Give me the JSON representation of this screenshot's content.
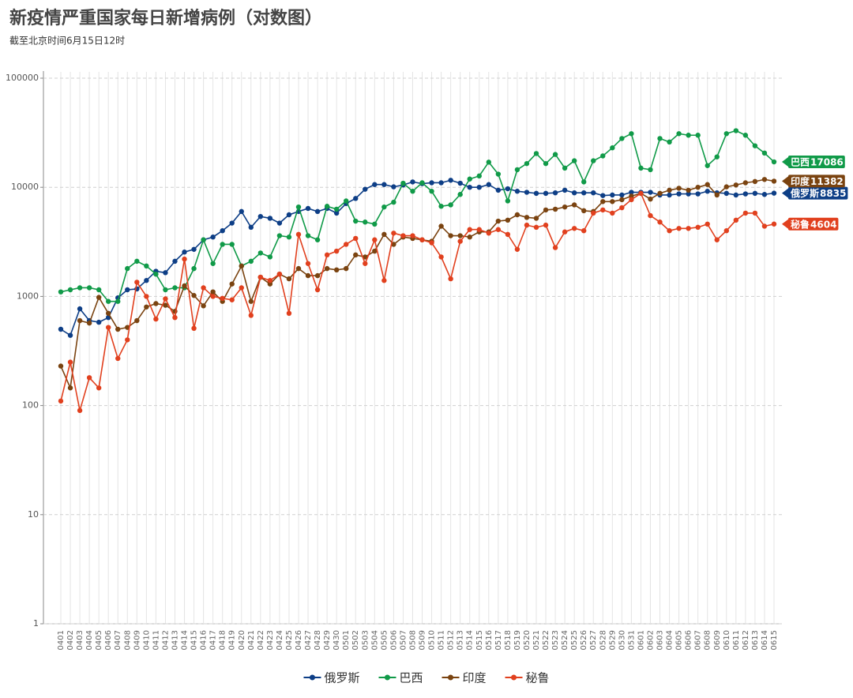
{
  "chart_data": {
    "type": "line",
    "title": "新疫情严重国家每日新增病例（对数图）",
    "subtitle": "截至北京时间6月15日12时",
    "categories": [
      "0401",
      "0402",
      "0403",
      "0404",
      "0405",
      "0406",
      "0407",
      "0408",
      "0409",
      "0410",
      "0411",
      "0412",
      "0413",
      "0414",
      "0415",
      "0416",
      "0417",
      "0418",
      "0419",
      "0420",
      "0421",
      "0422",
      "0423",
      "0424",
      "0425",
      "0426",
      "0427",
      "0428",
      "0429",
      "0430",
      "0501",
      "0502",
      "0503",
      "0504",
      "0505",
      "0506",
      "0507",
      "0508",
      "0509",
      "0510",
      "0511",
      "0512",
      "0513",
      "0514",
      "0515",
      "0516",
      "0517",
      "0518",
      "0519",
      "0520",
      "0521",
      "0522",
      "0523",
      "0524",
      "0525",
      "0526",
      "0527",
      "0528",
      "0529",
      "0530",
      "0531",
      "0601",
      "0602",
      "0603",
      "0604",
      "0605",
      "0606",
      "0607",
      "0608",
      "0609",
      "0610",
      "0611",
      "0612",
      "0613",
      "0614",
      "0615"
    ],
    "log_scale": true,
    "ylim": [
      1,
      100000
    ],
    "yticks": [
      1,
      10,
      100,
      1000,
      10000,
      100000
    ],
    "grid": true,
    "legend": "bottom",
    "series": [
      {
        "name": "俄罗斯",
        "color": "#0d3e86",
        "values": [
          500,
          440,
          770,
          600,
          580,
          640,
          970,
          1150,
          1170,
          1400,
          1700,
          1650,
          2100,
          2550,
          2700,
          3300,
          3500,
          4000,
          4700,
          6000,
          4300,
          5400,
          5200,
          4700,
          5600,
          6000,
          6400,
          6000,
          6400,
          5800,
          7100,
          7900,
          9600,
          10600,
          10600,
          10100,
          10500,
          11200,
          10800,
          11000,
          11000,
          11600,
          10900,
          10000,
          10000,
          10600,
          9400,
          9700,
          9200,
          9000,
          8800,
          8800,
          8900,
          9400,
          8900,
          8900,
          8900,
          8400,
          8500,
          8500,
          9000,
          9000,
          9000,
          8500,
          8500,
          8700,
          8700,
          8700,
          9200,
          8900,
          8800,
          8500,
          8700,
          8800,
          8600,
          8835
        ]
      },
      {
        "name": "巴西",
        "color": "#109a48",
        "values": [
          1100,
          1150,
          1200,
          1200,
          1150,
          900,
          900,
          1800,
          2100,
          1900,
          1600,
          1150,
          1200,
          1200,
          1800,
          3300,
          2000,
          3000,
          3000,
          1900,
          2100,
          2500,
          2300,
          3600,
          3500,
          6600,
          3600,
          3300,
          6700,
          6300,
          7500,
          4900,
          4800,
          4600,
          6600,
          7300,
          10900,
          9200,
          11000,
          9200,
          6700,
          6900,
          8600,
          11900,
          12700,
          17000,
          13200,
          7500,
          14500,
          16500,
          20400,
          16500,
          20000,
          15000,
          17500,
          11200,
          17500,
          19400,
          23000,
          28000,
          31000,
          15000,
          14500,
          28000,
          26000,
          31000,
          30000,
          30000,
          15800,
          19000,
          31000,
          33000,
          30000,
          24000,
          20600,
          17086
        ]
      },
      {
        "name": "印度",
        "color": "#7a4310",
        "values": [
          230,
          145,
          600,
          570,
          980,
          700,
          500,
          520,
          600,
          800,
          860,
          830,
          730,
          1250,
          1020,
          820,
          1100,
          900,
          1300,
          1900,
          900,
          1500,
          1300,
          1600,
          1450,
          1800,
          1550,
          1550,
          1800,
          1750,
          1800,
          2400,
          2300,
          2600,
          3700,
          3000,
          3500,
          3400,
          3300,
          3200,
          4400,
          3600,
          3600,
          3500,
          3900,
          3900,
          4900,
          5000,
          5600,
          5300,
          5200,
          6200,
          6300,
          6600,
          6900,
          6100,
          6000,
          7400,
          7400,
          7700,
          8300,
          8800,
          7800,
          8800,
          9400,
          9800,
          9400,
          10000,
          10600,
          8500,
          10100,
          10500,
          11000,
          11300,
          11800,
          11382
        ]
      },
      {
        "name": "秘鲁",
        "color": "#e1401e",
        "values": [
          110,
          250,
          90,
          180,
          145,
          520,
          270,
          400,
          1350,
          1000,
          620,
          950,
          640,
          2200,
          510,
          1200,
          1000,
          960,
          930,
          1200,
          670,
          1500,
          1400,
          1600,
          700,
          3700,
          2000,
          1150,
          2400,
          2600,
          3000,
          3400,
          2000,
          3300,
          1400,
          3800,
          3600,
          3600,
          3300,
          3100,
          2300,
          1450,
          3200,
          4100,
          4100,
          3800,
          4100,
          3700,
          2700,
          4500,
          4300,
          4500,
          2800,
          3900,
          4200,
          4000,
          5800,
          6200,
          5800,
          6500,
          7700,
          8800,
          5500,
          4800,
          4000,
          4200,
          4200,
          4300,
          4600,
          3300,
          4000,
          5000,
          5800,
          5800,
          4400,
          4604
        ]
      }
    ]
  }
}
